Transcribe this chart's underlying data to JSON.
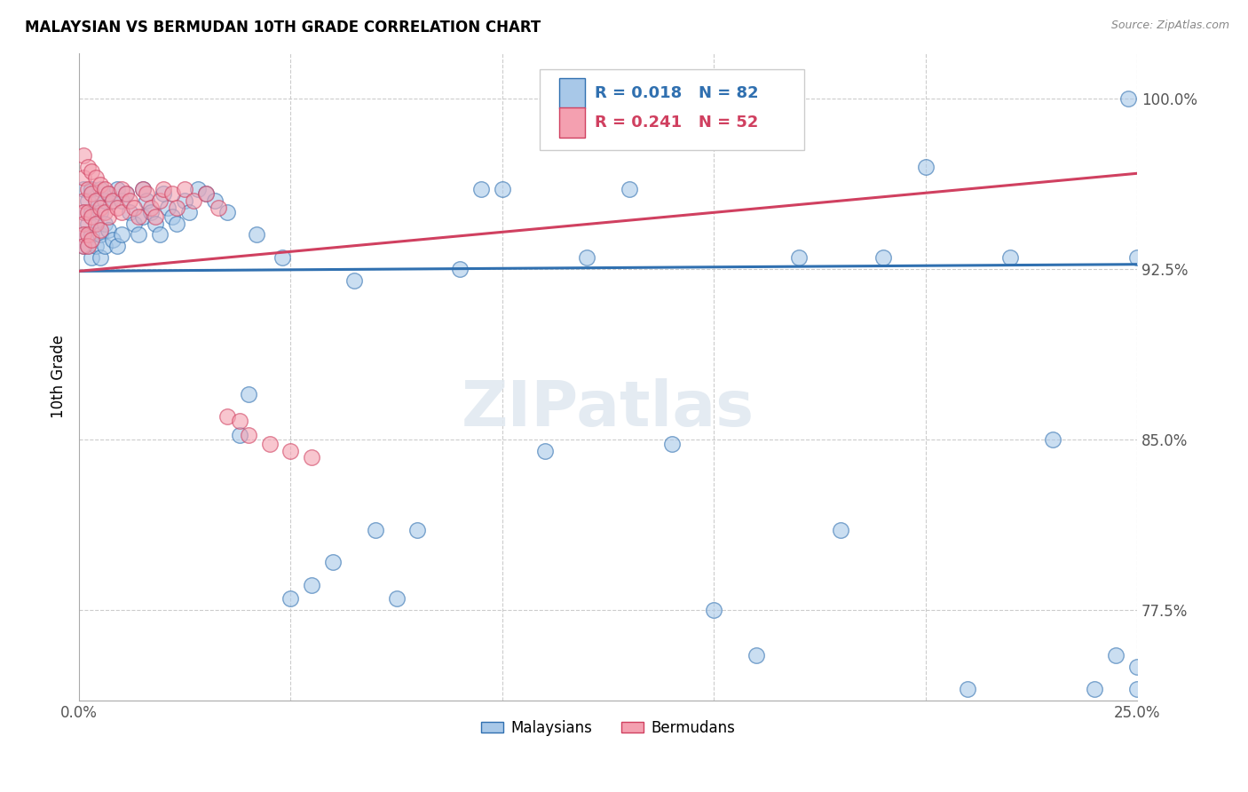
{
  "title": "MALAYSIAN VS BERMUDAN 10TH GRADE CORRELATION CHART",
  "source": "Source: ZipAtlas.com",
  "ylabel": "10th Grade",
  "ytick_labels": [
    "77.5%",
    "85.0%",
    "92.5%",
    "100.0%"
  ],
  "ytick_values": [
    0.775,
    0.85,
    0.925,
    1.0
  ],
  "xlim": [
    0.0,
    0.25
  ],
  "ylim": [
    0.735,
    1.02
  ],
  "legend_blue_label": "Malaysians",
  "legend_pink_label": "Bermudans",
  "R_blue": 0.018,
  "N_blue": 82,
  "R_pink": 0.241,
  "N_pink": 52,
  "blue_color": "#a8c8e8",
  "pink_color": "#f4a0b0",
  "line_blue_color": "#3070b0",
  "line_pink_color": "#d04060",
  "malaysian_x": [
    0.001,
    0.001,
    0.001,
    0.001,
    0.002,
    0.002,
    0.002,
    0.003,
    0.003,
    0.003,
    0.003,
    0.004,
    0.004,
    0.004,
    0.005,
    0.005,
    0.005,
    0.005,
    0.006,
    0.006,
    0.006,
    0.007,
    0.007,
    0.008,
    0.008,
    0.009,
    0.009,
    0.01,
    0.01,
    0.011,
    0.012,
    0.013,
    0.014,
    0.015,
    0.015,
    0.016,
    0.017,
    0.018,
    0.019,
    0.02,
    0.021,
    0.022,
    0.023,
    0.025,
    0.026,
    0.028,
    0.03,
    0.032,
    0.035,
    0.038,
    0.04,
    0.042,
    0.048,
    0.05,
    0.055,
    0.06,
    0.065,
    0.07,
    0.075,
    0.08,
    0.09,
    0.095,
    0.1,
    0.11,
    0.12,
    0.13,
    0.14,
    0.15,
    0.16,
    0.17,
    0.18,
    0.19,
    0.2,
    0.21,
    0.22,
    0.23,
    0.24,
    0.245,
    0.248,
    0.25,
    0.25,
    0.25
  ],
  "malaysian_y": [
    0.96,
    0.95,
    0.94,
    0.935,
    0.955,
    0.945,
    0.935,
    0.96,
    0.95,
    0.94,
    0.93,
    0.955,
    0.945,
    0.935,
    0.96,
    0.95,
    0.94,
    0.93,
    0.955,
    0.945,
    0.935,
    0.958,
    0.942,
    0.955,
    0.938,
    0.96,
    0.935,
    0.955,
    0.94,
    0.958,
    0.95,
    0.945,
    0.94,
    0.96,
    0.948,
    0.955,
    0.95,
    0.945,
    0.94,
    0.958,
    0.952,
    0.948,
    0.945,
    0.955,
    0.95,
    0.96,
    0.958,
    0.955,
    0.95,
    0.852,
    0.87,
    0.94,
    0.93,
    0.78,
    0.786,
    0.796,
    0.92,
    0.81,
    0.78,
    0.81,
    0.925,
    0.96,
    0.96,
    0.845,
    0.93,
    0.96,
    0.848,
    0.775,
    0.755,
    0.93,
    0.81,
    0.93,
    0.97,
    0.74,
    0.93,
    0.85,
    0.74,
    0.755,
    1.0,
    0.74,
    0.93,
    0.75
  ],
  "bermudan_x": [
    0.001,
    0.001,
    0.001,
    0.001,
    0.001,
    0.001,
    0.001,
    0.002,
    0.002,
    0.002,
    0.002,
    0.002,
    0.003,
    0.003,
    0.003,
    0.003,
    0.004,
    0.004,
    0.004,
    0.005,
    0.005,
    0.005,
    0.006,
    0.006,
    0.007,
    0.007,
    0.008,
    0.009,
    0.01,
    0.01,
    0.011,
    0.012,
    0.013,
    0.014,
    0.015,
    0.016,
    0.017,
    0.018,
    0.019,
    0.02,
    0.022,
    0.023,
    0.025,
    0.027,
    0.03,
    0.033,
    0.035,
    0.038,
    0.04,
    0.045,
    0.05,
    0.055
  ],
  "bermudan_y": [
    0.975,
    0.965,
    0.955,
    0.95,
    0.945,
    0.94,
    0.935,
    0.97,
    0.96,
    0.95,
    0.94,
    0.935,
    0.968,
    0.958,
    0.948,
    0.938,
    0.965,
    0.955,
    0.945,
    0.962,
    0.952,
    0.942,
    0.96,
    0.95,
    0.958,
    0.948,
    0.955,
    0.952,
    0.96,
    0.95,
    0.958,
    0.955,
    0.952,
    0.948,
    0.96,
    0.958,
    0.952,
    0.948,
    0.955,
    0.96,
    0.958,
    0.952,
    0.96,
    0.955,
    0.958,
    0.952,
    0.86,
    0.858,
    0.852,
    0.848,
    0.845,
    0.842
  ]
}
